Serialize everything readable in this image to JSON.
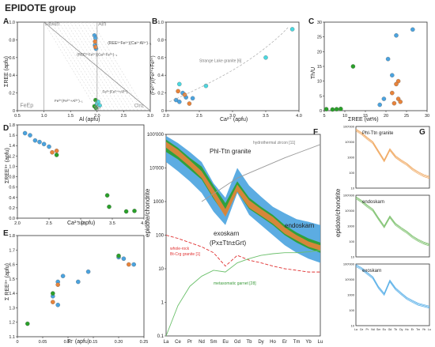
{
  "figure": {
    "title": "EPIDOTE group",
    "colors": {
      "blue": "#4aa3df",
      "orange": "#e8833a",
      "green": "#2aa02a",
      "cyan": "#4ad8e0",
      "grey": "#9a9a9a",
      "ttn_line": "#f0a860",
      "endo_line": "#7cc06c",
      "exo_line": "#5ab0e8"
    }
  },
  "chart_data": [
    {
      "id": "A",
      "type": "scatter",
      "xlabel": "Al (apfu)",
      "ylabel": "ΣREE (apfu)",
      "xlim": [
        0.5,
        3.0
      ],
      "ylim": [
        0,
        1.0
      ],
      "xticks": [
        "0.5",
        "1.0",
        "1.5",
        "2.0",
        "2.5",
        "3.0"
      ],
      "yticks": [
        "0",
        "0.2",
        "0.4",
        "0.6",
        "0.8",
        "1.0"
      ],
      "annotations": [
        "FeAln",
        "Aln",
        "(REE³⁺Fe²⁺)(Ca²⁺Al³⁺)₋₁",
        "(REE³⁺Fe²⁺)(Ca²⁺Fe³⁺)₋₁",
        "Fe³⁺(Fe²⁺+Al³⁺)",
        "Fe³⁺(Fe²⁺+Al³⁺)₋₁",
        "Ep",
        "FeEp",
        "Clnz"
      ],
      "series": [
        {
          "color": "blue",
          "points": [
            [
              1.95,
              0.85
            ],
            [
              1.97,
              0.82
            ],
            [
              1.96,
              0.74
            ],
            [
              1.98,
              0.7
            ]
          ]
        },
        {
          "color": "orange",
          "points": [
            [
              1.96,
              0.78
            ],
            [
              1.97,
              0.72
            ]
          ]
        },
        {
          "color": "green",
          "points": [
            [
              1.95,
              0.05
            ],
            [
              1.98,
              0.03
            ],
            [
              1.97,
              0.12
            ]
          ]
        },
        {
          "color": "cyan",
          "points": [
            [
              2.0,
              0.08
            ],
            [
              2.05,
              0.06
            ],
            [
              2.02,
              0.1
            ]
          ]
        }
      ]
    },
    {
      "id": "B",
      "type": "scatter",
      "xlabel": "Ca²⁺ (apfu)",
      "ylabel": "(Fe²⁺)/(Fe²⁺+Fe³⁺)",
      "xlim": [
        2.0,
        4.0
      ],
      "ylim": [
        0,
        1.0
      ],
      "xticks": [
        "2.0",
        "2.5",
        "3.0",
        "3.5",
        "4.0"
      ],
      "yticks": [
        "0",
        "0.2",
        "0.4",
        "0.6",
        "0.8",
        "1.0"
      ],
      "annotations": [
        "Strange Lake granite [6]"
      ],
      "series": [
        {
          "color": "blue",
          "points": [
            [
              2.15,
              0.12
            ],
            [
              2.2,
              0.1
            ],
            [
              2.3,
              0.15
            ],
            [
              2.25,
              0.2
            ],
            [
              2.4,
              0.14
            ]
          ]
        },
        {
          "color": "orange",
          "points": [
            [
              2.18,
              0.22
            ],
            [
              2.28,
              0.18
            ],
            [
              2.35,
              0.08
            ]
          ]
        },
        {
          "color": "cyan",
          "points": [
            [
              2.6,
              0.28
            ],
            [
              3.5,
              0.6
            ],
            [
              3.9,
              0.92
            ],
            [
              2.2,
              0.3
            ]
          ]
        }
      ]
    },
    {
      "id": "C",
      "type": "scatter",
      "xlabel": "ΣREE (wt%)",
      "ylabel": "Th/U",
      "xlim": [
        5,
        30
      ],
      "ylim": [
        0,
        30
      ],
      "xticks": [
        "5",
        "10",
        "15",
        "20",
        "25",
        "30"
      ],
      "yticks": [
        "0",
        "5",
        "10",
        "15",
        "20",
        "25",
        "30"
      ],
      "series": [
        {
          "color": "blue",
          "points": [
            [
              22.5,
              25.5
            ],
            [
              26.5,
              27.5
            ],
            [
              20.5,
              17.5
            ],
            [
              21.5,
              12
            ],
            [
              18.5,
              2
            ],
            [
              19.5,
              4
            ]
          ]
        },
        {
          "color": "orange",
          "points": [
            [
              23,
              10
            ],
            [
              22.5,
              9
            ],
            [
              21.5,
              6
            ],
            [
              22,
              2.5
            ],
            [
              23,
              4
            ],
            [
              23.5,
              3
            ]
          ]
        },
        {
          "color": "green",
          "points": [
            [
              12,
              15
            ],
            [
              5.5,
              0.5
            ],
            [
              7,
              0.4
            ],
            [
              8,
              0.5
            ],
            [
              9,
              0.6
            ]
          ]
        }
      ]
    },
    {
      "id": "D",
      "type": "scatter",
      "xlabel": "Ca²⁺ (apfu)",
      "ylabel": "ΣREE³⁺ (apfu)",
      "xlim": [
        2.0,
        4.0
      ],
      "ylim": [
        0,
        1.8
      ],
      "xticks": [
        "2.0",
        "2.5",
        "3.0",
        "3.5",
        "4.0"
      ],
      "yticks": [
        "0.0",
        "0.2",
        "0.4",
        "0.6",
        "0.8",
        "1.0",
        "1.2",
        "1.4",
        "1.6",
        "1.8"
      ],
      "series": [
        {
          "color": "blue",
          "points": [
            [
              2.12,
              1.64
            ],
            [
              2.2,
              1.6
            ],
            [
              2.28,
              1.5
            ],
            [
              2.35,
              1.47
            ],
            [
              2.42,
              1.43
            ],
            [
              2.5,
              1.38
            ]
          ]
        },
        {
          "color": "orange",
          "points": [
            [
              2.55,
              1.27
            ],
            [
              2.62,
              1.3
            ]
          ]
        },
        {
          "color": "green",
          "points": [
            [
              2.62,
              1.22
            ],
            [
              3.42,
              0.44
            ],
            [
              3.45,
              0.22
            ],
            [
              3.72,
              0.13
            ],
            [
              3.85,
              0.14
            ]
          ]
        }
      ]
    },
    {
      "id": "E",
      "type": "scatter",
      "xlabel": "F⁻ (apfu)",
      "ylabel": "Σ REE³⁺ (apfu)",
      "xlim": [
        0,
        0.25
      ],
      "ylim": [
        1.1,
        1.8
      ],
      "xticks": [
        "0",
        "0.05",
        "0.10",
        "0.15",
        "0.20",
        "0.25"
      ],
      "yticks": [
        "1.1",
        "1.2",
        "1.3",
        "1.4",
        "1.5",
        "1.6",
        "1.7",
        "1.8"
      ],
      "series": [
        {
          "color": "blue",
          "points": [
            [
              0.08,
              1.48
            ],
            [
              0.09,
              1.52
            ],
            [
              0.12,
              1.48
            ],
            [
              0.14,
              1.55
            ],
            [
              0.2,
              1.65
            ],
            [
              0.21,
              1.64
            ],
            [
              0.23,
              1.6
            ],
            [
              0.07,
              1.38
            ],
            [
              0.08,
              1.32
            ]
          ]
        },
        {
          "color": "orange",
          "points": [
            [
              0.07,
              1.34
            ],
            [
              0.22,
              1.6
            ],
            [
              0.08,
              1.46
            ]
          ]
        },
        {
          "color": "green",
          "points": [
            [
              0.02,
              1.19
            ],
            [
              0.07,
              1.4
            ],
            [
              0.2,
              1.66
            ]
          ]
        }
      ]
    },
    {
      "id": "F",
      "type": "line",
      "ylabel": "epidote/chondrite",
      "yscale": "log",
      "ylim": [
        0.1,
        100000
      ],
      "yticks": [
        "0.1",
        "1",
        "10",
        "100",
        "1000",
        "10'000",
        "100'000"
      ],
      "categories": [
        "La",
        "Ce",
        "Pr",
        "Nd",
        "Sm",
        "Eu",
        "Gd",
        "Tb",
        "Dy",
        "Ho",
        "Er",
        "Tm",
        "Yb",
        "Lu"
      ],
      "labels": [
        "Phl-Ttn granite",
        "endoskarn",
        "exoskarn",
        "(Px±Ttn±Grt)",
        "hydrothermal zircon [11]",
        "whole-rock",
        "Bt-Crg granite [1]",
        "metasomatic garnet [28]"
      ],
      "bands": [
        {
          "name": "exoskarn",
          "color": "blue",
          "low": [
            15000,
            8000,
            4000,
            1800,
            500,
            200,
            1800,
            400,
            200,
            100,
            50,
            30,
            20,
            15
          ],
          "high": [
            90000,
            55000,
            30000,
            15000,
            3500,
            1300,
            10000,
            3000,
            1400,
            700,
            450,
            300,
            250,
            200
          ]
        },
        {
          "name": "endoskarn",
          "color": "green",
          "low": [
            30000,
            18000,
            9000,
            4500,
            1200,
            380,
            2000,
            600,
            350,
            200,
            100,
            60,
            40,
            30
          ],
          "high": [
            70000,
            40000,
            20000,
            11000,
            3000,
            900,
            4000,
            1300,
            700,
            400,
            200,
            120,
            80,
            60
          ]
        },
        {
          "name": "Phl-Ttn granite",
          "color": "orange",
          "low": [
            40000,
            22000,
            11000,
            5000,
            1300,
            350,
            2000,
            650,
            380,
            220,
            110,
            70,
            45,
            35
          ],
          "high": [
            60000,
            35000,
            17000,
            8000,
            2300,
            600,
            3200,
            1100,
            600,
            350,
            170,
            100,
            65,
            50
          ]
        }
      ],
      "lines": [
        {
          "name": "hydrothermal zircon [11]",
          "color": "grey",
          "style": "solid",
          "values": [
            null,
            null,
            null,
            1000,
            null,
            null,
            5000,
            null,
            null,
            null,
            20000,
            null,
            null,
            50000
          ]
        },
        {
          "name": "whole-rock Bt-Crg granite [1]",
          "color": "red",
          "style": "dashed",
          "values": [
            100,
            80,
            60,
            45,
            30,
            12,
            25,
            18,
            15,
            12,
            10,
            9,
            8,
            8
          ]
        },
        {
          "name": "metasomatic garnet [28]",
          "color": "green",
          "style": "solid",
          "values": [
            0.1,
            0.8,
            3,
            6,
            9,
            8,
            15,
            20,
            25,
            28,
            30,
            30,
            32,
            35
          ]
        }
      ]
    },
    {
      "id": "G",
      "type": "line",
      "panels": 3,
      "ylabel": "epidote/chondrite",
      "yscale": "log",
      "ylim": [
        10,
        100000
      ],
      "yticks": [
        "10",
        "100",
        "1000",
        "10'000",
        "100'000"
      ],
      "categories": [
        "La",
        "Ce",
        "Pr",
        "Nd",
        "Sm",
        "Eu",
        "Gd",
        "Tb",
        "Dy",
        "Ho",
        "Er",
        "Tm",
        "Yb",
        "Lu"
      ],
      "subplots": [
        {
          "label": "Phl-Ttn granite",
          "color": "orange",
          "values": [
            60000,
            35000,
            17000,
            9000,
            2300,
            600,
            3200,
            1100,
            600,
            350,
            170,
            100,
            65,
            50
          ]
        },
        {
          "label": "endoskarn",
          "color": "green",
          "values": [
            70000,
            40000,
            20000,
            11000,
            3000,
            900,
            4000,
            1300,
            700,
            400,
            200,
            120,
            80,
            60
          ]
        },
        {
          "label": "exoskarn",
          "color": "blue",
          "values": [
            80000,
            50000,
            25000,
            13000,
            3000,
            1100,
            8000,
            2500,
            1200,
            600,
            380,
            250,
            200,
            160
          ]
        }
      ]
    }
  ]
}
